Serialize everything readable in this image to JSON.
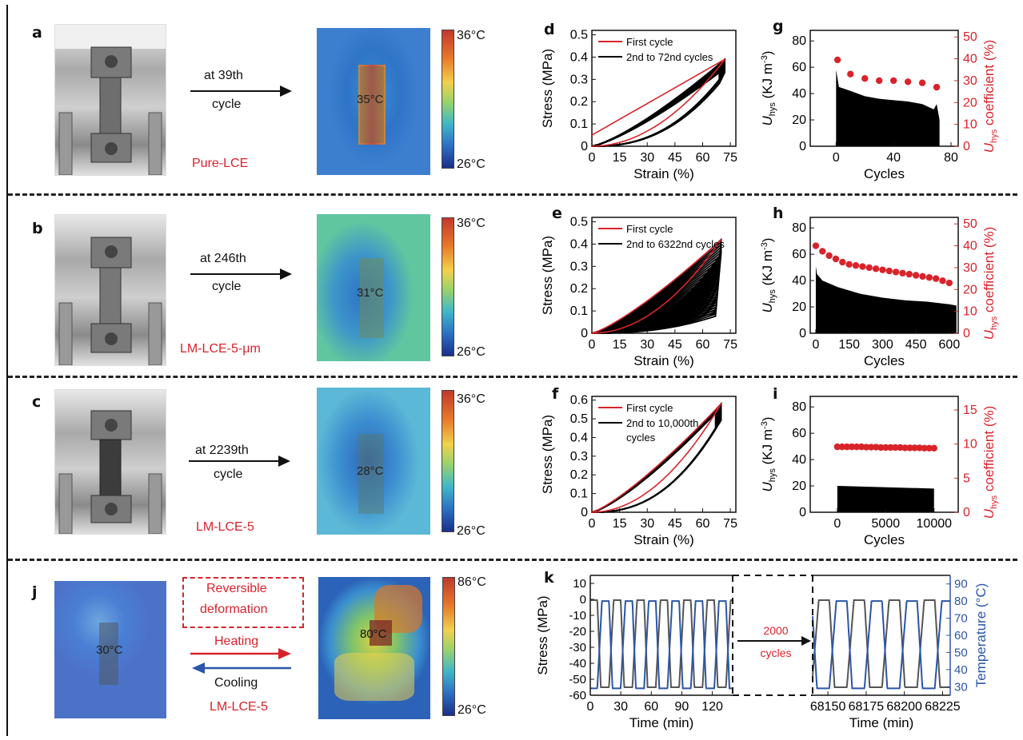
{
  "panels": {
    "a": {
      "label": "a",
      "arrow_text_1": "at 39th",
      "arrow_text_2": "cycle",
      "material": "Pure-LCE",
      "spot_temp": "35°C",
      "cb_max": "36°C",
      "cb_min": "26°C"
    },
    "b": {
      "label": "b",
      "arrow_text_1": "at 246th",
      "arrow_text_2": "cycle",
      "material": "LM-LCE-5-μm",
      "spot_temp": "31°C",
      "cb_max": "36°C",
      "cb_min": "26°C"
    },
    "c": {
      "label": "c",
      "arrow_text_1": "at 2239th",
      "arrow_text_2": "cycle",
      "material": "LM-LCE-5",
      "spot_temp": "28°C",
      "cb_max": "36°C",
      "cb_min": "26°C"
    },
    "j": {
      "label": "j",
      "spot_temp_left": "30°C",
      "box_text_1": "Reversible",
      "box_text_2": "deformation",
      "heating": "Heating",
      "cooling": "Cooling",
      "material": "LM-LCE-5",
      "spot_temp_right": "80°C",
      "cb_max": "86°C",
      "cb_min": "26°C"
    },
    "k": {
      "label": "k",
      "mid_text_1": "2000",
      "mid_text_2": "cycles"
    }
  },
  "colors": {
    "red": "#d9232a",
    "blue": "#2a55a8",
    "gray": "#555555"
  },
  "chart_data": [
    {
      "id": "d",
      "type": "line",
      "xlabel": "Strain (%)",
      "ylabel": "Stress (MPa)",
      "xticks": [
        "0",
        "15",
        "30",
        "45",
        "60",
        "75"
      ],
      "yticks": [
        "0",
        "0.1",
        "0.2",
        "0.3",
        "0.4",
        "0.5"
      ],
      "xlim": [
        0,
        78
      ],
      "ylim": [
        0,
        0.52
      ],
      "legend": [
        "First cycle",
        "2nd to 72nd cycles"
      ],
      "max_strain": 72,
      "first_peak": 0.39,
      "last_peak": 0.33
    },
    {
      "id": "e",
      "type": "line",
      "xlabel": "Strain (%)",
      "ylabel": "Stress (MPa)",
      "xticks": [
        "0",
        "15",
        "30",
        "45",
        "60",
        "75"
      ],
      "yticks": [
        "0",
        "0.1",
        "0.2",
        "0.3",
        "0.4",
        "0.5"
      ],
      "xlim": [
        0,
        78
      ],
      "ylim": [
        0,
        0.52
      ],
      "legend": [
        "First cycle",
        "2nd to 6322nd cycles"
      ],
      "max_strain": 70,
      "first_peak": 0.42,
      "last_peak": 0.09
    },
    {
      "id": "f",
      "type": "line",
      "xlabel": "Strain (%)",
      "ylabel": "Stress (MPa)",
      "xticks": [
        "0",
        "15",
        "30",
        "45",
        "60",
        "75"
      ],
      "yticks": [
        "0",
        "0.1",
        "0.2",
        "0.3",
        "0.4",
        "0.5",
        "0.6"
      ],
      "xlim": [
        0,
        78
      ],
      "ylim": [
        0,
        0.62
      ],
      "legend": [
        "First cycle",
        "2nd to 10,000th",
        "cycles"
      ],
      "max_strain": 70,
      "first_peak": 0.58,
      "last_peak": 0.53
    },
    {
      "id": "g",
      "type": "bar+scatter",
      "xlabel": "Cycles",
      "ylabel_left_main": "U",
      "ylabel_left_sub": "hys",
      "ylabel_left_rest": " (KJ m",
      "ylabel_left_sup": "-3",
      "ylabel_left_close": ")",
      "ylabel_right_main": "U",
      "ylabel_right_sub": "hys",
      "ylabel_right_rest": " coefficient (%)",
      "xticks": [
        "0",
        "40",
        "80"
      ],
      "xtick_values": [
        0,
        40,
        80
      ],
      "yticks_left": [
        "0",
        "20",
        "40",
        "60",
        "80"
      ],
      "yticks_right": [
        "0",
        "10",
        "20",
        "30",
        "40",
        "50"
      ],
      "xlim": [
        -18,
        85
      ],
      "ylim_left": [
        0,
        88
      ],
      "ylim_right": [
        0,
        53
      ],
      "bars_x": [
        0,
        2,
        10,
        20,
        30,
        40,
        50,
        60,
        68,
        70,
        72
      ],
      "bars_y": [
        58,
        45,
        42,
        38,
        36,
        35,
        34,
        32,
        28,
        32,
        20
      ],
      "points_x": [
        1,
        10,
        20,
        30,
        40,
        50,
        60,
        70
      ],
      "points_y": [
        39.5,
        33,
        31,
        30,
        30,
        29.5,
        29,
        27
      ]
    },
    {
      "id": "h",
      "type": "bar+scatter",
      "xlabel": "Cycles",
      "ylabel_left_main": "U",
      "ylabel_left_sub": "hys",
      "ylabel_left_rest": " (KJ m",
      "ylabel_left_sup": "-3",
      "ylabel_left_close": ")",
      "ylabel_right_main": "U",
      "ylabel_right_sub": "hys",
      "ylabel_right_rest": " coefficient (%)",
      "xticks": [
        "0",
        "150",
        "300",
        "450",
        "600"
      ],
      "xtick_values": [
        0,
        150,
        300,
        450,
        600
      ],
      "yticks_left": [
        "0",
        "20",
        "40",
        "60",
        "80"
      ],
      "yticks_right": [
        "0",
        "10",
        "20",
        "30",
        "40",
        "50"
      ],
      "xlim": [
        -25,
        640
      ],
      "ylim_left": [
        0,
        88
      ],
      "ylim_right": [
        0,
        53
      ],
      "bars_x": [
        0,
        5,
        30,
        100,
        200,
        300,
        400,
        500,
        600,
        632
      ],
      "bars_y": [
        51,
        45,
        40,
        35,
        30,
        27,
        25,
        24,
        22,
        21
      ],
      "points_x": [
        0,
        30,
        60,
        90,
        120,
        150,
        180,
        210,
        240,
        270,
        300,
        330,
        360,
        390,
        420,
        450,
        480,
        510,
        540,
        570,
        600
      ],
      "points_y": [
        40,
        37.5,
        35.5,
        34,
        32.5,
        31.5,
        31,
        30.5,
        30,
        29.5,
        29,
        28.5,
        28,
        27.5,
        27,
        26.5,
        26,
        25.5,
        25,
        24,
        23
      ]
    },
    {
      "id": "i",
      "type": "bar+scatter",
      "xlabel": "Cycles",
      "ylabel_left_main": "U",
      "ylabel_left_sub": "hys",
      "ylabel_left_rest": " (KJ m",
      "ylabel_left_sup": "-3",
      "ylabel_left_close": ")",
      "ylabel_right_main": "U",
      "ylabel_right_sub": "hys",
      "ylabel_right_rest": " coefficient (%)",
      "xticks": [
        "0",
        "5000",
        "10000"
      ],
      "xtick_values": [
        0,
        5000,
        10000
      ],
      "yticks_left": [
        "0",
        "20",
        "40",
        "60",
        "80"
      ],
      "yticks_right": [
        "0",
        "5",
        "10",
        "15"
      ],
      "xlim": [
        -2800,
        12500
      ],
      "ylim_left": [
        0,
        88
      ],
      "ylim_right": [
        0,
        17
      ],
      "bars_x": [
        0,
        10000
      ],
      "bars_y": [
        20,
        18
      ],
      "points_x": [
        0,
        500,
        1000,
        1500,
        2000,
        2500,
        3000,
        3500,
        4000,
        4500,
        5000,
        5500,
        6000,
        6500,
        7000,
        7500,
        8000,
        8500,
        9000,
        9500,
        10000
      ],
      "points_y": [
        9.6,
        9.6,
        9.6,
        9.6,
        9.6,
        9.6,
        9.55,
        9.55,
        9.55,
        9.5,
        9.5,
        9.5,
        9.5,
        9.5,
        9.45,
        9.45,
        9.45,
        9.45,
        9.4,
        9.4,
        9.4
      ]
    },
    {
      "id": "k1",
      "type": "line",
      "xlabel": "Time (min)",
      "ylabel": "Stress (MPa)",
      "xticks": [
        "0",
        "30",
        "60",
        "90",
        "120"
      ],
      "xtick_values": [
        0,
        30,
        60,
        90,
        120
      ],
      "yticks": [
        "-60",
        "-50",
        "-40",
        "-30",
        "-20",
        "-10",
        "0",
        "10"
      ],
      "ytick_values": [
        -60,
        -50,
        -40,
        -30,
        -20,
        -10,
        0,
        10
      ],
      "xlim": [
        0,
        140
      ],
      "ylim": [
        -60,
        15
      ],
      "period": 23,
      "stress_max": -0.5,
      "stress_min": -55
    },
    {
      "id": "k2",
      "type": "line",
      "xlabel": "Time (min)",
      "ylabel_right": "Temperature (°C)",
      "xticks": [
        "68150",
        "68175",
        "68200",
        "68225"
      ],
      "xtick_values": [
        68150,
        68175,
        68200,
        68225
      ],
      "yticks_right": [
        "30",
        "40",
        "50",
        "60",
        "70",
        "80",
        "90"
      ],
      "ytick_values": [
        30,
        40,
        50,
        60,
        70,
        80,
        90
      ],
      "xlim": [
        68140,
        68230
      ],
      "ylim_right": [
        25,
        95
      ],
      "period": 23,
      "temp_max": 80,
      "temp_min": 29
    }
  ]
}
